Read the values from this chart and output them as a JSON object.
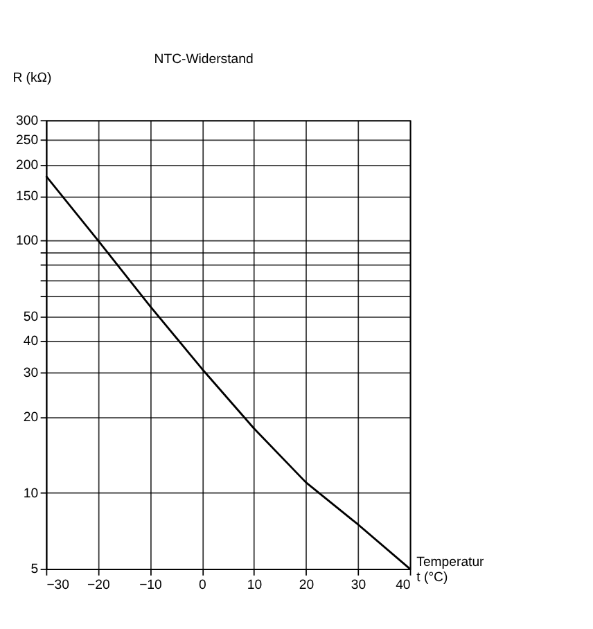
{
  "chart_data": {
    "type": "line",
    "title": "NTC-Widerstand",
    "ylabel": "R (kΩ)",
    "xlabel": "Temperatur\nt (°C)",
    "x": [
      -30,
      -20,
      -10,
      0,
      10,
      20,
      30,
      40
    ],
    "series": [
      {
        "color": "#000000",
        "values": [
          180,
          100,
          55,
          31,
          18,
          11,
          7.5,
          5
        ]
      }
    ],
    "log": "y",
    "grid": true,
    "marker": "none",
    "line_style": "solid",
    "xlim": [
      -30,
      40
    ],
    "xticks": [
      -30,
      -20,
      -10,
      0,
      10,
      20,
      30,
      40
    ],
    "ylim": [
      5,
      300
    ],
    "yticks": [
      5,
      10,
      20,
      30,
      40,
      50,
      {
        "value": 60,
        "label": null
      },
      {
        "value": 70,
        "label": null
      },
      {
        "value": 80,
        "label": null
      },
      {
        "value": 90,
        "label": null
      },
      100,
      150,
      200,
      250,
      300
    ]
  }
}
